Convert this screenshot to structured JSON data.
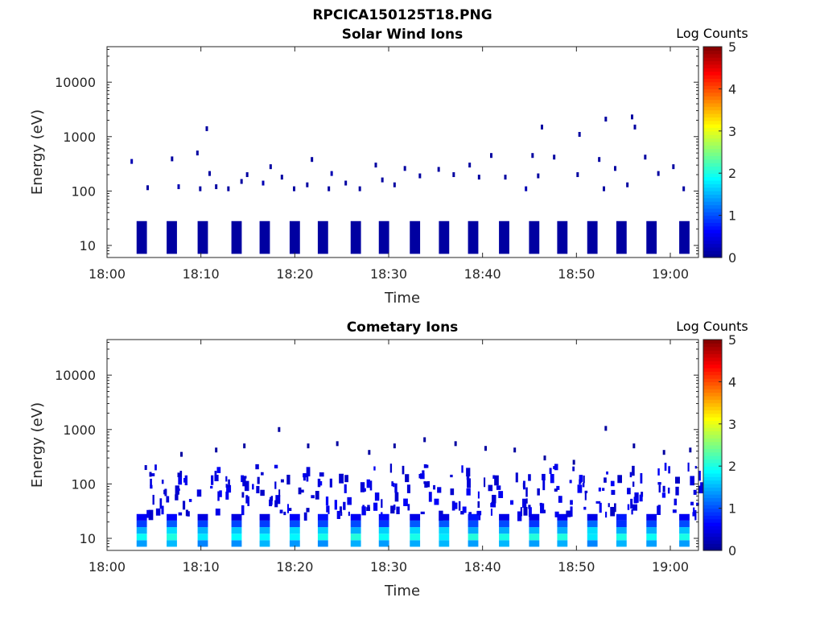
{
  "figure": {
    "filename": "RPCICA150125T18.PNG"
  },
  "colors": {
    "scale": [
      "#00008f",
      "#0000ff",
      "#007fff",
      "#00ffff",
      "#7fff7f",
      "#ffff00",
      "#ff7f00",
      "#ff0000",
      "#7f0000"
    ],
    "axis": "#262626",
    "dark_blue": "#00008f"
  },
  "chart_data": [
    {
      "type": "heatmap",
      "title": "Solar Wind Ions",
      "xlabel": "Time",
      "ylabel": "Energy (eV)",
      "y_scale": "log",
      "xlim": [
        "18:00",
        "19:03"
      ],
      "ylim": [
        6,
        45000
      ],
      "x_ticks": [
        "18:00",
        "18:10",
        "18:20",
        "18:30",
        "18:40",
        "18:50",
        "19:00"
      ],
      "y_ticks": [
        "10",
        "100",
        "1000",
        "10000"
      ],
      "colorbar": {
        "label": "Log Counts",
        "range": [
          0,
          5
        ],
        "ticks": [
          "0",
          "1",
          "2",
          "3",
          "4",
          "5"
        ]
      },
      "low_band": {
        "energy_range_eV": [
          7,
          28
        ],
        "log_counts": 0.1,
        "bursts_minutes": [
          3.7,
          6.9,
          10.2,
          13.8,
          16.8,
          20.0,
          23.0,
          26.5,
          29.5,
          32.8,
          35.9,
          39.0,
          42.3,
          45.5,
          48.5,
          51.7,
          54.8,
          58.0,
          61.5
        ]
      },
      "scatter_cells": [
        {
          "t": 2.5,
          "e": 350,
          "c": 0.2
        },
        {
          "t": 4.2,
          "e": 115,
          "c": 0.1
        },
        {
          "t": 6.8,
          "e": 390,
          "c": 0.1
        },
        {
          "t": 7.5,
          "e": 120,
          "c": 0.2
        },
        {
          "t": 9.5,
          "e": 500,
          "c": 0.1
        },
        {
          "t": 9.8,
          "e": 110,
          "c": 0.1
        },
        {
          "t": 10.5,
          "e": 1400,
          "c": 0.1
        },
        {
          "t": 10.8,
          "e": 210,
          "c": 0.1
        },
        {
          "t": 11.5,
          "e": 120,
          "c": 0.1
        },
        {
          "t": 12.8,
          "e": 110,
          "c": 0.1
        },
        {
          "t": 14.2,
          "e": 150,
          "c": 0.1
        },
        {
          "t": 14.8,
          "e": 200,
          "c": 0.1
        },
        {
          "t": 16.5,
          "e": 140,
          "c": 0.2
        },
        {
          "t": 17.3,
          "e": 280,
          "c": 0.1
        },
        {
          "t": 18.5,
          "e": 180,
          "c": 0.1
        },
        {
          "t": 19.8,
          "e": 110,
          "c": 0.1
        },
        {
          "t": 21.2,
          "e": 130,
          "c": 0.1
        },
        {
          "t": 21.7,
          "e": 380,
          "c": 0.1
        },
        {
          "t": 23.5,
          "e": 110,
          "c": 0.1
        },
        {
          "t": 23.8,
          "e": 210,
          "c": 0.2
        },
        {
          "t": 25.3,
          "e": 140,
          "c": 0.1
        },
        {
          "t": 26.8,
          "e": 110,
          "c": 0.1
        },
        {
          "t": 28.5,
          "e": 300,
          "c": 0.1
        },
        {
          "t": 29.2,
          "e": 160,
          "c": 0.1
        },
        {
          "t": 30.5,
          "e": 130,
          "c": 0.1
        },
        {
          "t": 31.6,
          "e": 260,
          "c": 0.1
        },
        {
          "t": 33.2,
          "e": 190,
          "c": 0.1
        },
        {
          "t": 35.2,
          "e": 250,
          "c": 0.1
        },
        {
          "t": 36.8,
          "e": 200,
          "c": 0.1
        },
        {
          "t": 38.5,
          "e": 300,
          "c": 0.1
        },
        {
          "t": 39.5,
          "e": 180,
          "c": 0.1
        },
        {
          "t": 40.8,
          "e": 450,
          "c": 0.1
        },
        {
          "t": 42.3,
          "e": 180,
          "c": 0.1
        },
        {
          "t": 44.5,
          "e": 110,
          "c": 0.2
        },
        {
          "t": 45.2,
          "e": 450,
          "c": 0.1
        },
        {
          "t": 45.8,
          "e": 190,
          "c": 0.1
        },
        {
          "t": 46.2,
          "e": 1500,
          "c": 0.1
        },
        {
          "t": 47.5,
          "e": 420,
          "c": 0.1
        },
        {
          "t": 50.0,
          "e": 200,
          "c": 0.1
        },
        {
          "t": 50.2,
          "e": 1100,
          "c": 0.1
        },
        {
          "t": 52.3,
          "e": 380,
          "c": 0.1
        },
        {
          "t": 52.8,
          "e": 110,
          "c": 0.1
        },
        {
          "t": 53.0,
          "e": 2100,
          "c": 0.1
        },
        {
          "t": 54.0,
          "e": 260,
          "c": 0.1
        },
        {
          "t": 55.3,
          "e": 130,
          "c": 0.1
        },
        {
          "t": 55.8,
          "e": 2300,
          "c": 0.1
        },
        {
          "t": 56.1,
          "e": 1500,
          "c": 0.1
        },
        {
          "t": 57.2,
          "e": 420,
          "c": 0.1
        },
        {
          "t": 58.6,
          "e": 210,
          "c": 0.1
        },
        {
          "t": 60.2,
          "e": 280,
          "c": 0.1
        },
        {
          "t": 61.3,
          "e": 110,
          "c": 0.1
        }
      ]
    },
    {
      "type": "heatmap",
      "title": "Cometary Ions",
      "xlabel": "Time",
      "ylabel": "Energy (eV)",
      "y_scale": "log",
      "xlim": [
        "18:00",
        "19:03"
      ],
      "ylim": [
        6,
        45000
      ],
      "x_ticks": [
        "18:00",
        "18:10",
        "18:20",
        "18:30",
        "18:40",
        "18:50",
        "19:00"
      ],
      "y_ticks": [
        "10",
        "100",
        "1000",
        "10000"
      ],
      "colorbar": {
        "label": "Log Counts",
        "range": [
          0,
          5
        ],
        "ticks": [
          "0",
          "1",
          "2",
          "3",
          "4",
          "5"
        ]
      },
      "low_band": {
        "energy_range_eV": [
          7,
          28
        ],
        "log_counts_profile": [
          1.4,
          1.9,
          1.6,
          1.0,
          0.6
        ],
        "bursts_minutes": [
          3.7,
          6.9,
          10.2,
          13.8,
          16.8,
          20.0,
          23.0,
          26.5,
          29.5,
          32.8,
          35.9,
          39.0,
          42.3,
          45.5,
          48.5,
          51.7,
          54.8,
          58.0,
          61.5
        ]
      },
      "scatter_cells": [
        {
          "t": 4.0,
          "e": 200,
          "c": 0.3
        },
        {
          "t": 4.5,
          "e": 150,
          "c": 0.3
        },
        {
          "t": 7.8,
          "e": 350,
          "c": 0.1
        },
        {
          "t": 11.5,
          "e": 420,
          "c": 0.1
        },
        {
          "t": 14.5,
          "e": 500,
          "c": 0.1
        },
        {
          "t": 18.2,
          "e": 1000,
          "c": 0.1
        },
        {
          "t": 21.3,
          "e": 500,
          "c": 0.1
        },
        {
          "t": 24.4,
          "e": 550,
          "c": 0.1
        },
        {
          "t": 27.8,
          "e": 380,
          "c": 0.1
        },
        {
          "t": 30.5,
          "e": 500,
          "c": 0.1
        },
        {
          "t": 33.7,
          "e": 650,
          "c": 0.1
        },
        {
          "t": 37.0,
          "e": 550,
          "c": 0.1
        },
        {
          "t": 40.2,
          "e": 450,
          "c": 0.1
        },
        {
          "t": 43.3,
          "e": 420,
          "c": 0.1
        },
        {
          "t": 46.5,
          "e": 300,
          "c": 0.1
        },
        {
          "t": 49.6,
          "e": 250,
          "c": 0.1
        },
        {
          "t": 53.0,
          "e": 1050,
          "c": 0.1
        },
        {
          "t": 56.0,
          "e": 500,
          "c": 0.1
        },
        {
          "t": 59.2,
          "e": 380,
          "c": 0.1
        },
        {
          "t": 62.0,
          "e": 420,
          "c": 0.1
        }
      ],
      "mid_band": {
        "energy_range_eV": [
          30,
          250
        ],
        "log_counts": 0.3
      }
    }
  ]
}
